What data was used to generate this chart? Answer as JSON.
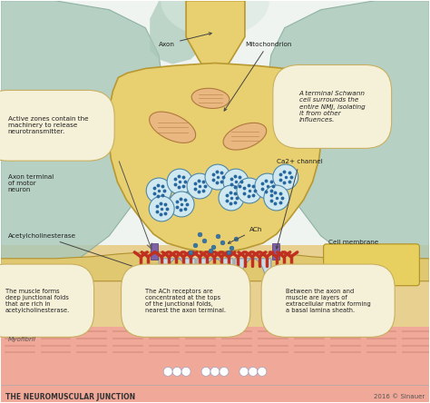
{
  "title": "THE NEUROMUSCULAR JUNCTION",
  "copyright": "2016 © Sinauer",
  "bg_top": "#e8f0f0",
  "bg_bottom": "#f5e8d8",
  "axon_fill": "#e8d070",
  "axon_edge": "#b89830",
  "schwann_fill": "#a8c8b8",
  "schwann_edge": "#80a890",
  "muscle_fill": "#e8c870",
  "muscle_edge": "#b89830",
  "jfold_fill": "#c8dce8",
  "jfold_edge": "#8898a8",
  "myofibril_fill": "#f0a898",
  "vesicle_fill": "#d0e8f0",
  "vesicle_edge": "#5088a8",
  "mito_fill": "#e8b880",
  "mito_edge": "#b07840",
  "ach_col": "#3878a0",
  "receptor_col": "#c03020",
  "ca_col": "#8060a8",
  "box_fill": "#f5f0d8",
  "box_edge": "#c8b060",
  "text_col": "#222222",
  "labels": {
    "axon": "Axon",
    "mitochondrion": "Mitochondrion",
    "ca_channel": "Ca2+ channel",
    "active_zones_title": "Active zones",
    "active_zones_body": " contain the\nmachinery to release\nneurotransmitter.",
    "axon_terminal": "Axon terminal\nof motor\nneuron",
    "schwann_title": "terminal Schwann\ncell",
    "schwann_body": " surrounds the\nentire NMJ, isolating\nit from other\ninfluences.",
    "cell_membrane": "Cell membrane",
    "acetylcholinesterase": "Acetylcholinesterase",
    "ach": "ACh",
    "muscle_folds_title": "junctional folds",
    "muscle_folds_pre": "The muscle forms\ndeep ",
    "muscle_folds_post": "\nthat are rich in\nacetylcholinesterase.",
    "ach_rec_title": "ACh receptors",
    "ach_rec_pre": "The ",
    "ach_rec_post": " are\nconcentrated at the tops\nof the junctional folds,\nnearest the axon terminal.",
    "basal_title": "basal lamina sheath.",
    "basal_pre": "Between the axon and\nmuscle are layers of\nextracellular matrix forming\na ",
    "myofibril": "Myofibril"
  }
}
